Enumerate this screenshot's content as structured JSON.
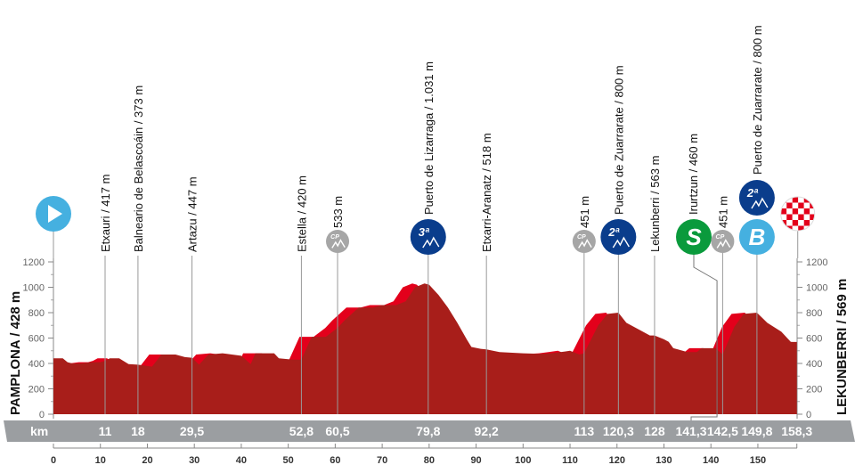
{
  "chart_data": {
    "type": "area",
    "title": "",
    "start": "PAMPLONA / 428 m",
    "finish": "LEKUNBERRI / 569 m",
    "km_label": "km",
    "xlim": [
      0,
      158.3
    ],
    "ylim": [
      0,
      1200
    ],
    "y_ticks": [
      0,
      200,
      400,
      600,
      800,
      1000,
      1200
    ],
    "x_ticks": [
      0,
      10,
      20,
      30,
      40,
      50,
      60,
      70,
      80,
      90,
      100,
      110,
      120,
      130,
      140,
      150
    ],
    "colors": {
      "profile": "#a81e1a",
      "climb": "#e3001b",
      "bar": "#9b9ea1",
      "cat_blue": "#0a3d8c",
      "sprint_green": "#0a9a3c",
      "bonus_blue": "#45b0e0",
      "cp_grey": "#a6a6a6"
    },
    "profile": [
      [
        0,
        440
      ],
      [
        2,
        440
      ],
      [
        3,
        410
      ],
      [
        4,
        400
      ],
      [
        6,
        400
      ],
      [
        8,
        410
      ],
      [
        10,
        410
      ],
      [
        11,
        420
      ],
      [
        12,
        440
      ],
      [
        14,
        440
      ],
      [
        16,
        395
      ],
      [
        18,
        390
      ],
      [
        20,
        380
      ],
      [
        21,
        375
      ],
      [
        23,
        470
      ],
      [
        26,
        470
      ],
      [
        28,
        450
      ],
      [
        29.5,
        445
      ],
      [
        31,
        390
      ],
      [
        33,
        470
      ],
      [
        36,
        480
      ],
      [
        38,
        470
      ],
      [
        40,
        460
      ],
      [
        42,
        395
      ],
      [
        43,
        480
      ],
      [
        47,
        480
      ],
      [
        48,
        440
      ],
      [
        51,
        430
      ],
      [
        52.8,
        430
      ],
      [
        55,
        610
      ],
      [
        58,
        610
      ],
      [
        60.5,
        680
      ],
      [
        62,
        740
      ],
      [
        65,
        840
      ],
      [
        68,
        840
      ],
      [
        70,
        860
      ],
      [
        73,
        860
      ],
      [
        75,
        890
      ],
      [
        77,
        1000
      ],
      [
        79,
        1030
      ],
      [
        80,
        1020
      ],
      [
        82,
        940
      ],
      [
        84,
        840
      ],
      [
        86,
        720
      ],
      [
        88,
        590
      ],
      [
        89,
        530
      ],
      [
        91,
        515
      ],
      [
        92.2,
        510
      ],
      [
        95,
        490
      ],
      [
        100,
        480
      ],
      [
        104,
        475
      ],
      [
        106,
        480
      ],
      [
        108,
        490
      ],
      [
        110,
        500
      ],
      [
        112,
        470
      ],
      [
        113,
        480
      ],
      [
        116,
        700
      ],
      [
        118,
        790
      ],
      [
        120.3,
        800
      ],
      [
        122,
        720
      ],
      [
        125,
        660
      ],
      [
        127,
        620
      ],
      [
        128,
        620
      ],
      [
        130,
        590
      ],
      [
        131,
        570
      ],
      [
        132,
        520
      ],
      [
        135,
        490
      ],
      [
        137,
        490
      ],
      [
        138,
        520
      ],
      [
        141,
        520
      ],
      [
        142.5,
        470
      ],
      [
        145,
        690
      ],
      [
        147,
        790
      ],
      [
        149.8,
        800
      ],
      [
        152,
        720
      ],
      [
        155,
        650
      ],
      [
        157,
        570
      ],
      [
        158.3,
        569
      ]
    ],
    "points": [
      {
        "km": 11,
        "km_text": "11",
        "label": "Etxauri / 417 m"
      },
      {
        "km": 18,
        "km_text": "18",
        "label": "Balneario de Belascoáin / 373 m"
      },
      {
        "km": 29.5,
        "km_text": "29,5",
        "label": "Artazu / 447 m"
      },
      {
        "km": 52.8,
        "km_text": "52,8",
        "label": "Estella / 420 m"
      },
      {
        "km": 60.5,
        "km_text": "60,5",
        "label": "533 m",
        "icon": "cp",
        "icon_text": "CP"
      },
      {
        "km": 79.8,
        "km_text": "79,8",
        "label": "Puerto de Lizarraga / 1.031 m",
        "icon": "cat",
        "icon_text": "3ª"
      },
      {
        "km": 92.2,
        "km_text": "92,2",
        "label": "Etxarri-Aranatz / 518 m"
      },
      {
        "km": 113,
        "km_text": "113",
        "label": "451 m",
        "icon": "cp",
        "icon_text": "CP"
      },
      {
        "km": 120.3,
        "km_text": "120,3",
        "label": "Puerto de Zuarrarate / 800 m",
        "icon": "cat",
        "icon_text": "2ª"
      },
      {
        "km": 128,
        "km_text": "128",
        "label": "Lekunberri / 563 m"
      },
      {
        "km": 141.3,
        "km_text": "141,3",
        "label": "Irurtzun / 460 m",
        "icon": "sprint",
        "icon_text": "S"
      },
      {
        "km": 142.5,
        "km_text": "142,5",
        "label": "451 m",
        "icon": "cp",
        "icon_text": "CP"
      },
      {
        "km": 149.8,
        "km_text": "149,8",
        "label": "Puerto de Zuarrarate / 800 m",
        "icon": "cat_bonus",
        "icon_text": "2ª",
        "icon2_text": "B"
      },
      {
        "km": 158.3,
        "km_text": "158,3",
        "label": "",
        "icon": "finish-flag"
      }
    ],
    "start_icon": "play-icon"
  }
}
